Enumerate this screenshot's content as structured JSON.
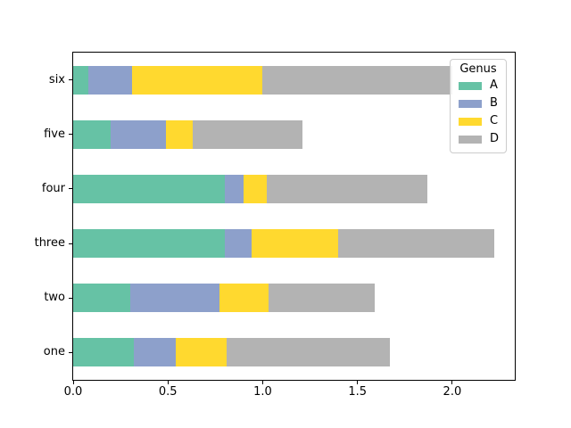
{
  "chart_data": {
    "type": "bar",
    "orientation": "horizontal",
    "stacked": true,
    "title": "",
    "xlabel": "",
    "ylabel": "",
    "categories": [
      "one",
      "two",
      "three",
      "four",
      "five",
      "six"
    ],
    "series": [
      {
        "name": "A",
        "color": "#66c2a5",
        "values": [
          0.32,
          0.3,
          0.8,
          0.8,
          0.2,
          0.08
        ]
      },
      {
        "name": "B",
        "color": "#8da0cb",
        "values": [
          0.22,
          0.47,
          0.14,
          0.1,
          0.29,
          0.23
        ]
      },
      {
        "name": "C",
        "color": "#ffd92f",
        "values": [
          0.27,
          0.26,
          0.46,
          0.12,
          0.14,
          0.69
        ]
      },
      {
        "name": "D",
        "color": "#b3b3b3",
        "values": [
          0.86,
          0.56,
          0.82,
          0.85,
          0.58,
          1.0
        ]
      }
    ],
    "totals": [
      1.67,
      1.59,
      2.22,
      1.87,
      1.21,
      2.0
    ],
    "xlim": [
      0,
      2.33
    ],
    "x_ticks": [
      0.0,
      0.5,
      1.0,
      1.5,
      2.0
    ],
    "x_tick_labels": [
      "0.0",
      "0.5",
      "1.0",
      "1.5",
      "2.0"
    ],
    "grid": false,
    "legend": {
      "title": "Genus",
      "position": "upper right",
      "entries": [
        "A",
        "B",
        "C",
        "D"
      ]
    },
    "axis_color": "#000000",
    "background_color": "#ffffff"
  }
}
